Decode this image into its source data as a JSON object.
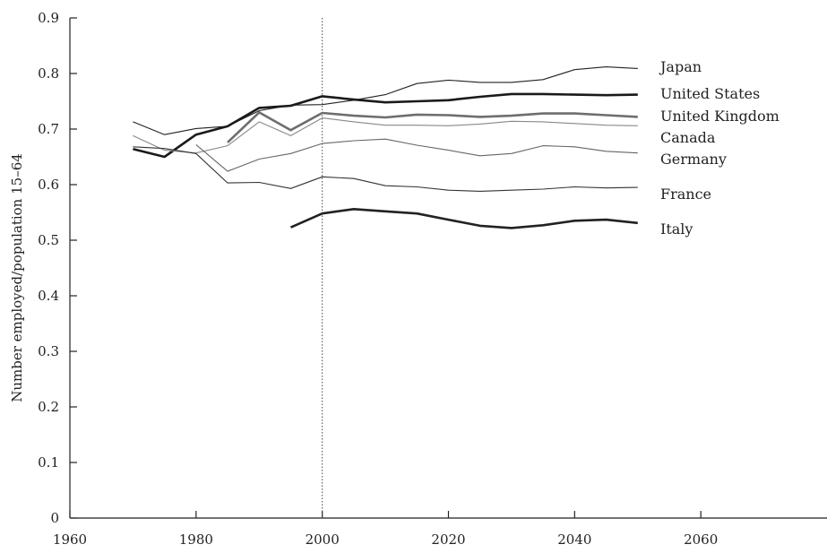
{
  "chart_data": {
    "type": "line",
    "title": "",
    "xlabel": "",
    "ylabel": "Number employed/population 15–64",
    "xlim": [
      1960,
      2080
    ],
    "ylim": [
      0,
      0.9
    ],
    "xticks": [
      1960,
      1980,
      2000,
      2020,
      2040,
      2060
    ],
    "yticks": [
      0,
      0.1,
      0.2,
      0.3,
      0.4,
      0.5,
      0.6,
      0.7,
      0.8,
      0.9
    ],
    "ytick_labels": [
      "0",
      "0.1",
      "0.2",
      "0.3",
      "0.4",
      "0.5",
      "0.6",
      "0.7",
      "0.8",
      "0.9"
    ],
    "xtick_labels": [
      "1960",
      "1980",
      "2000",
      "2020",
      "2040",
      "2060"
    ],
    "reference_line_x": 2000,
    "grid": false,
    "legend": "inline labels at right end of series",
    "series": [
      {
        "name": "Japan",
        "color": "#222222",
        "style": "thin",
        "x": [
          1970,
          1975,
          1980,
          1985,
          1990,
          1995,
          2000,
          2005,
          2010,
          2015,
          2020,
          2025,
          2030,
          2035,
          2040,
          2045,
          2050
        ],
        "values": [
          0.713,
          0.69,
          0.701,
          0.705,
          0.733,
          0.743,
          0.744,
          0.752,
          0.762,
          0.782,
          0.788,
          0.784,
          0.784,
          0.789,
          0.807,
          0.812,
          0.809
        ]
      },
      {
        "name": "United States",
        "color": "#1a1a1a",
        "style": "thick",
        "x": [
          1970,
          1975,
          1980,
          1985,
          1990,
          1995,
          2000,
          2005,
          2010,
          2015,
          2020,
          2025,
          2030,
          2035,
          2040,
          2045,
          2050
        ],
        "values": [
          0.664,
          0.65,
          0.69,
          0.705,
          0.738,
          0.742,
          0.759,
          0.753,
          0.748,
          0.75,
          0.752,
          0.758,
          0.763,
          0.763,
          0.762,
          0.761,
          0.762
        ]
      },
      {
        "name": "United Kingdom",
        "color": "#6e6e6e",
        "style": "thick",
        "x": [
          1985,
          1990,
          1995,
          2000,
          2005,
          2010,
          2015,
          2020,
          2025,
          2030,
          2035,
          2040,
          2045,
          2050
        ],
        "values": [
          0.676,
          0.73,
          0.698,
          0.729,
          0.724,
          0.721,
          0.726,
          0.725,
          0.722,
          0.724,
          0.728,
          0.728,
          0.725,
          0.722
        ]
      },
      {
        "name": "Canada",
        "color": "#888888",
        "style": "thin",
        "x": [
          1970,
          1975,
          1980,
          1985,
          1990,
          1995,
          2000,
          2005,
          2010,
          2015,
          2020,
          2025,
          2030,
          2035,
          2040,
          2045,
          2050
        ],
        "values": [
          0.688,
          0.662,
          0.657,
          0.67,
          0.713,
          0.688,
          0.72,
          0.713,
          0.707,
          0.707,
          0.706,
          0.709,
          0.714,
          0.713,
          0.71,
          0.707,
          0.706
        ]
      },
      {
        "name": "Germany",
        "color": "#666666",
        "style": "thin",
        "x": [
          1980,
          1985,
          1990,
          1995,
          2000,
          2005,
          2010,
          2015,
          2020,
          2025,
          2030,
          2035,
          2040,
          2045,
          2050
        ],
        "values": [
          0.672,
          0.624,
          0.646,
          0.656,
          0.674,
          0.679,
          0.682,
          0.671,
          0.662,
          0.652,
          0.656,
          0.67,
          0.668,
          0.66,
          0.657
        ]
      },
      {
        "name": "France",
        "color": "#333333",
        "style": "thin",
        "x": [
          1970,
          1975,
          1980,
          1985,
          1990,
          1995,
          2000,
          2005,
          2010,
          2015,
          2020,
          2025,
          2030,
          2035,
          2040,
          2045,
          2050
        ],
        "values": [
          0.668,
          0.665,
          0.656,
          0.603,
          0.604,
          0.593,
          0.614,
          0.611,
          0.598,
          0.596,
          0.59,
          0.588,
          0.59,
          0.592,
          0.596,
          0.594,
          0.595
        ]
      },
      {
        "name": "Italy",
        "color": "#222222",
        "style": "thick",
        "x": [
          1995,
          2000,
          2005,
          2010,
          2015,
          2020,
          2025,
          2030,
          2035,
          2040,
          2045,
          2050
        ],
        "values": [
          0.523,
          0.548,
          0.556,
          0.552,
          0.548,
          0.537,
          0.526,
          0.522,
          0.527,
          0.535,
          0.537,
          0.531
        ]
      }
    ],
    "series_labels": [
      "Japan",
      "United States",
      "United Kingdom",
      "Canada",
      "Germany",
      "France",
      "Italy"
    ]
  }
}
